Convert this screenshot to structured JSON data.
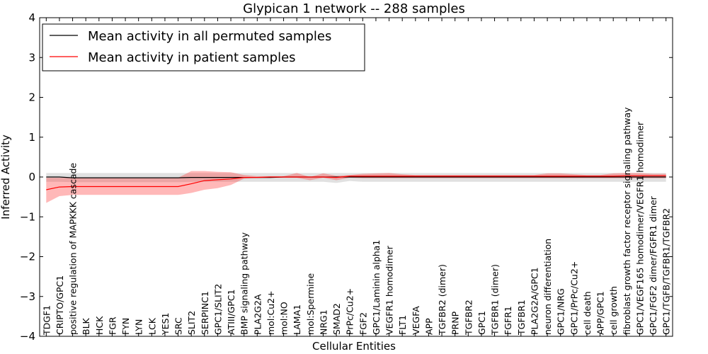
{
  "chart_data": {
    "type": "line",
    "title": "Glypican 1 network -- 288 samples",
    "xlabel": "Cellular Entities",
    "ylabel": "Inferred Activity",
    "ylim": [
      -4,
      4
    ],
    "yticks": [
      -4,
      -3,
      -2,
      -1,
      0,
      1,
      2,
      3,
      4
    ],
    "ytick_labels": [
      "−4",
      "−3",
      "−2",
      "−1",
      "0",
      "1",
      "2",
      "3",
      "4"
    ],
    "legend": {
      "location": "top-left",
      "entries": [
        {
          "label": "Mean activity in all permuted samples",
          "color": "#000000"
        },
        {
          "label": "Mean activity in patient samples",
          "color": "#ff0000"
        }
      ]
    },
    "categories": [
      "TDGF1",
      "CRIPTO/GPC1",
      "positive regulation of MAPKKK cascade",
      "BLK",
      "HCK",
      "FGR",
      "FYN",
      "LYN",
      "LCK",
      "YES1",
      "SRC",
      "SLIT2",
      "SERPINC1",
      "GPC1/SLIT2",
      "ATIII/GPC1",
      "BMP signaling pathway",
      "PLA2G2A",
      "mol:Cu2+",
      "mol:NO",
      "LAMA1",
      "mol:Spermine",
      "NRG1",
      "SMAD2",
      "PrPc/Cu2+",
      "FGF2",
      "GPC1/Laminin alpha1",
      "VEGFR1 homodimer",
      "FLT1",
      "VEGFA",
      "APP",
      "TGFBR2 (dimer)",
      "PRNP",
      "TGFBR2",
      "GPC1",
      "TGFBR1 (dimer)",
      "FGFR1",
      "TGFBR1",
      "PLA2G2A/GPC1",
      "neuron differentiation",
      "GPC1/NRG",
      "GPC1/PrPc/Cu2+",
      "cell death",
      "APP/GPC1",
      "cell growth",
      "fibroblast growth factor receptor signaling pathway",
      "GPC1/VEGF165 homodimer/VEGFR1 homodimer",
      "GPC1/FGF2 dimer/FGFR1 dimer",
      "GPC1/TGFB/TGFBR1/TGFBR2"
    ],
    "x_index_range": [
      -0.5,
      47.5
    ],
    "series": [
      {
        "name": "Mean activity in all permuted samples",
        "color": "#000000",
        "values": [
          0.0,
          0.0,
          -0.02,
          -0.02,
          -0.02,
          -0.02,
          -0.02,
          -0.02,
          -0.02,
          -0.02,
          -0.02,
          -0.01,
          -0.01,
          -0.01,
          -0.01,
          -0.01,
          -0.01,
          -0.01,
          0.0,
          0.0,
          0.0,
          0.0,
          0.0,
          0.0,
          0.0,
          0.0,
          0.0,
          0.0,
          0.0,
          0.0,
          0.0,
          0.0,
          0.0,
          0.0,
          0.0,
          0.0,
          0.0,
          0.0,
          0.0,
          0.0,
          0.0,
          0.0,
          0.0,
          0.0,
          0.0,
          0.0,
          0.0,
          0.0
        ],
        "band_upper": [
          0.1,
          0.1,
          0.1,
          0.1,
          0.1,
          0.1,
          0.1,
          0.1,
          0.1,
          0.1,
          0.1,
          0.1,
          0.1,
          0.1,
          0.1,
          0.1,
          0.1,
          0.1,
          0.1,
          0.1,
          0.1,
          0.1,
          0.1,
          0.1,
          0.1,
          0.1,
          0.1,
          0.1,
          0.1,
          0.1,
          0.1,
          0.1,
          0.1,
          0.1,
          0.1,
          0.1,
          0.1,
          0.1,
          0.1,
          0.1,
          0.1,
          0.1,
          0.1,
          0.1,
          0.1,
          0.1,
          0.1,
          0.1
        ],
        "band_lower": [
          -0.12,
          -0.12,
          -0.13,
          -0.13,
          -0.13,
          -0.13,
          -0.13,
          -0.13,
          -0.13,
          -0.13,
          -0.13,
          -0.12,
          -0.12,
          -0.12,
          -0.12,
          -0.12,
          -0.12,
          -0.12,
          -0.12,
          -0.12,
          -0.12,
          -0.12,
          -0.15,
          -0.1,
          -0.12,
          -0.12,
          -0.12,
          -0.12,
          -0.12,
          -0.12,
          -0.12,
          -0.12,
          -0.12,
          -0.12,
          -0.12,
          -0.12,
          -0.12,
          -0.12,
          -0.12,
          -0.12,
          -0.12,
          -0.12,
          -0.12,
          -0.12,
          -0.12,
          -0.12,
          -0.12,
          -0.12
        ]
      },
      {
        "name": "Mean activity in patient samples",
        "color": "#ff0000",
        "values": [
          -0.32,
          -0.25,
          -0.24,
          -0.24,
          -0.24,
          -0.24,
          -0.24,
          -0.24,
          -0.24,
          -0.24,
          -0.24,
          -0.17,
          -0.09,
          -0.07,
          -0.05,
          -0.01,
          -0.01,
          0.0,
          0.0,
          0.0,
          0.0,
          0.0,
          -0.01,
          0.02,
          0.02,
          0.02,
          0.02,
          0.02,
          0.02,
          0.02,
          0.02,
          0.02,
          0.02,
          0.02,
          0.02,
          0.02,
          0.02,
          0.02,
          0.02,
          0.02,
          0.02,
          0.02,
          0.02,
          0.02,
          0.03,
          0.03,
          0.03,
          0.03
        ],
        "band_upper": [
          -0.02,
          -0.02,
          -0.02,
          -0.02,
          -0.02,
          -0.02,
          -0.02,
          -0.02,
          -0.02,
          -0.02,
          -0.02,
          0.15,
          0.15,
          0.13,
          0.12,
          0.05,
          0.02,
          0.02,
          0.02,
          0.1,
          0.0,
          0.09,
          0.03,
          0.05,
          0.08,
          0.09,
          0.1,
          0.07,
          0.05,
          0.05,
          0.05,
          0.05,
          0.05,
          0.05,
          0.05,
          0.05,
          0.05,
          0.05,
          0.09,
          0.09,
          0.07,
          0.05,
          0.05,
          0.09,
          0.1,
          0.1,
          0.08,
          0.08
        ],
        "band_lower": [
          -0.65,
          -0.48,
          -0.45,
          -0.45,
          -0.45,
          -0.45,
          -0.45,
          -0.45,
          -0.45,
          -0.45,
          -0.45,
          -0.4,
          -0.32,
          -0.28,
          -0.2,
          -0.04,
          -0.02,
          -0.02,
          -0.02,
          -0.02,
          -0.08,
          -0.02,
          -0.08,
          -0.02,
          -0.03,
          -0.03,
          -0.03,
          -0.03,
          -0.03,
          -0.03,
          -0.03,
          -0.03,
          -0.03,
          -0.03,
          -0.03,
          -0.03,
          -0.03,
          -0.03,
          -0.03,
          -0.03,
          -0.03,
          -0.03,
          -0.03,
          -0.03,
          -0.03,
          -0.03,
          -0.03,
          -0.03
        ]
      }
    ]
  }
}
